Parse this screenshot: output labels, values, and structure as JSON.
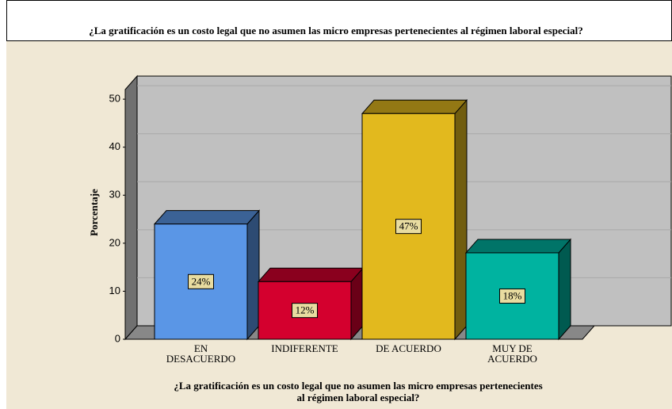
{
  "chart_data": {
    "type": "bar3d",
    "title": "¿La gratificación es un costo legal que no asumen las micro empresas pertenecientes al régimen laboral especial?",
    "categories": [
      [
        "EN",
        "DESACUERDO"
      ],
      [
        "INDIFERENTE"
      ],
      [
        "DE ACUERDO"
      ],
      [
        "MUY DE",
        "ACUERDO"
      ]
    ],
    "values": [
      24,
      12,
      47,
      18
    ],
    "value_labels": [
      "24%",
      "12%",
      "47%",
      "18%"
    ],
    "colors": [
      "#5a96e6",
      "#d4002e",
      "#e2b91e",
      "#00b3a0"
    ],
    "y_label": "Porcentaje",
    "x_label": [
      "¿La gratificación es un costo legal que no asumen las micro empresas pertenecientes",
      "al régimen laboral especial?"
    ],
    "ylim": [
      0,
      52
    ],
    "yticks": [
      0,
      10,
      20,
      30,
      40,
      50
    ],
    "grid": true
  }
}
